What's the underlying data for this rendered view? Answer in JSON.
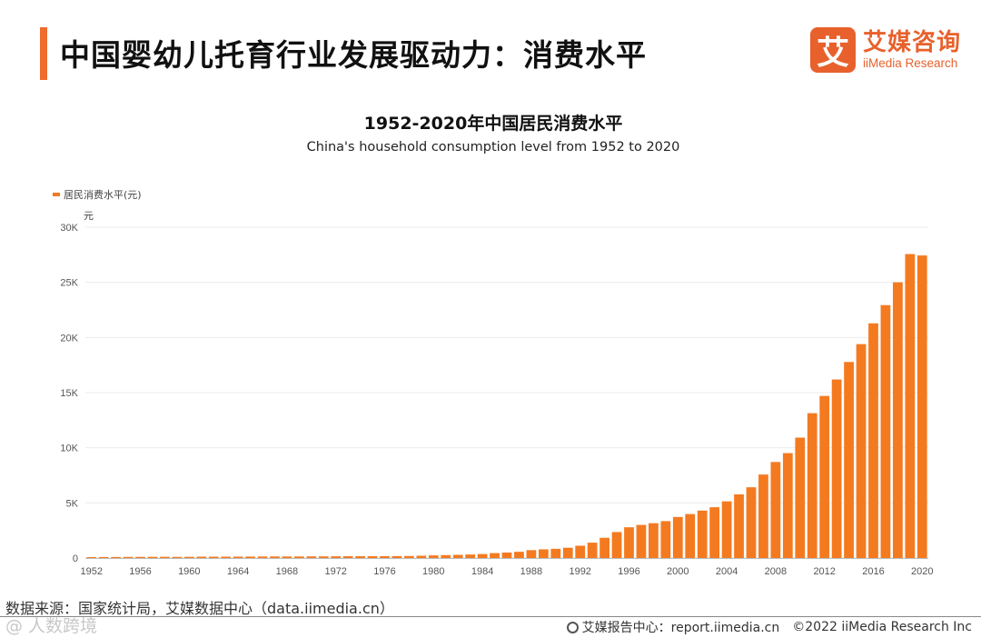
{
  "header": {
    "title": "中国婴幼儿托育行业发展驱动力：消费水平",
    "logo_mark": "艾",
    "logo_cn": "艾媒咨询",
    "logo_en": "iiMedia Research"
  },
  "chart_data": {
    "type": "bar",
    "title": "1952-2020年中国居民消费水平",
    "subtitle": "China's household consumption level from 1952 to 2020",
    "legend": "居民消费水平(元)",
    "legend_position": "top-left",
    "ylabel": "元",
    "ylim": [
      0,
      30000
    ],
    "yticks": [
      "0",
      "5K",
      "10K",
      "15K",
      "20K",
      "25K",
      "30K"
    ],
    "ytick_values": [
      0,
      5000,
      10000,
      15000,
      20000,
      25000,
      30000
    ],
    "xticks": [
      "1952",
      "1956",
      "1960",
      "1964",
      "1968",
      "1972",
      "1976",
      "1980",
      "1984",
      "1988",
      "1992",
      "1996",
      "2000",
      "2004",
      "2008",
      "2012",
      "2016",
      "2020"
    ],
    "grid": true,
    "bar_color": "#f47a20",
    "categories": [
      "1952",
      "1953",
      "1954",
      "1955",
      "1956",
      "1957",
      "1958",
      "1959",
      "1960",
      "1961",
      "1962",
      "1963",
      "1964",
      "1965",
      "1966",
      "1967",
      "1968",
      "1969",
      "1970",
      "1971",
      "1972",
      "1973",
      "1974",
      "1975",
      "1976",
      "1977",
      "1978",
      "1979",
      "1980",
      "1981",
      "1982",
      "1983",
      "1984",
      "1985",
      "1986",
      "1987",
      "1988",
      "1989",
      "1990",
      "1991",
      "1992",
      "1993",
      "1994",
      "1995",
      "1996",
      "1997",
      "1998",
      "1999",
      "2000",
      "2001",
      "2002",
      "2003",
      "2004",
      "2005",
      "2006",
      "2007",
      "2008",
      "2009",
      "2010",
      "2011",
      "2012",
      "2013",
      "2014",
      "2015",
      "2016",
      "2017",
      "2018",
      "2019",
      "2020"
    ],
    "values": [
      80,
      91,
      94,
      100,
      104,
      108,
      111,
      104,
      111,
      125,
      124,
      125,
      128,
      133,
      139,
      143,
      139,
      142,
      147,
      150,
      155,
      162,
      163,
      167,
      171,
      175,
      184,
      208,
      238,
      264,
      288,
      316,
      361,
      446,
      497,
      565,
      714,
      788,
      833,
      932,
      1116,
      1393,
      1833,
      2355,
      2789,
      3002,
      3159,
      3346,
      3721,
      3987,
      4301,
      4606,
      5138,
      5771,
      6416,
      7572,
      8707,
      9514,
      10919,
      13134,
      14699,
      16190,
      17778,
      19397,
      21285,
      22935,
      25002,
      27563,
      27438
    ]
  },
  "footer": {
    "source": "数据来源：国家统计局，艾媒数据中心（data.iimedia.cn）",
    "watermark": "@ 人数跨境",
    "report_label": "艾媒报告中心：report.iimedia.cn",
    "copyright": "©2022  iiMedia Research  Inc"
  }
}
